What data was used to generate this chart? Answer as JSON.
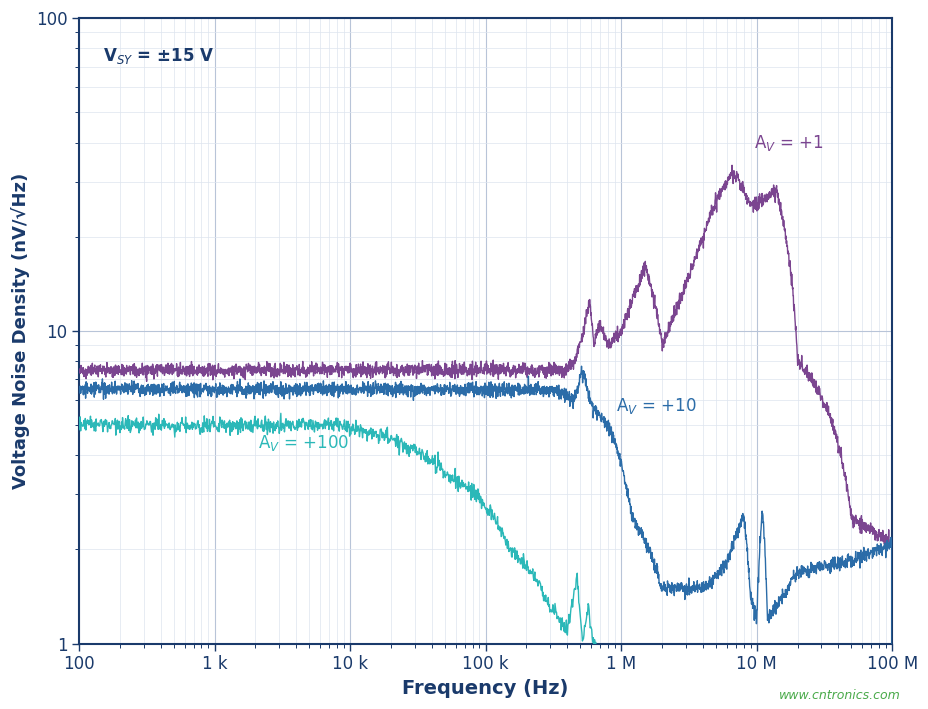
{
  "xlabel": "Frequency (Hz)",
  "ylabel": "Voltage Noise Density (nV/√Hz)",
  "watermark": "www.cntronics.com",
  "xlim": [
    100,
    100000000.0
  ],
  "ylim": [
    1,
    100
  ],
  "xtick_labels": [
    "100",
    "1 k",
    "10 k",
    "100 k",
    "1 M",
    "10 M",
    "100 M"
  ],
  "xtick_vals": [
    100,
    1000,
    10000,
    100000,
    1000000,
    10000000,
    100000000
  ],
  "ytick_labels": [
    "1",
    "10",
    "100"
  ],
  "ytick_vals": [
    1,
    10,
    100
  ],
  "plot_bg_color": "#ffffff",
  "fig_bg_color": "#ffffff",
  "line_color_av1": "#7b4590",
  "line_color_av10": "#2b6ca8",
  "line_color_av100": "#2bb8b8",
  "axis_label_color": "#1a3a6b",
  "grid_major_color": "#b8c4d8",
  "grid_minor_color": "#dde4ef",
  "border_color": "#1a3a6b"
}
